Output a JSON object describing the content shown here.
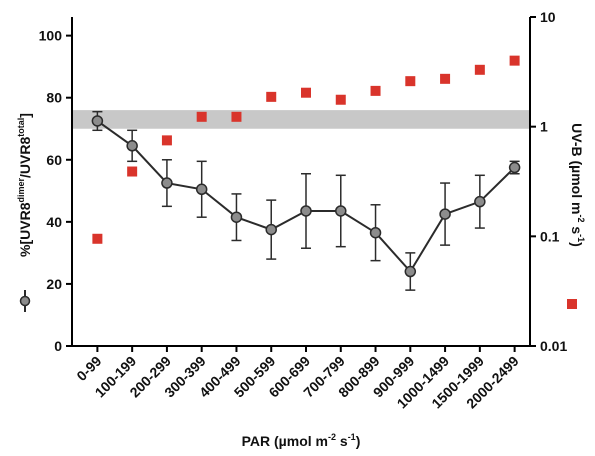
{
  "chart_data": {
    "type": "line",
    "categories": [
      "0-99",
      "100-199",
      "200-299",
      "300-399",
      "400-499",
      "500-599",
      "600-699",
      "700-799",
      "800-899",
      "900-999",
      "1000-1499",
      "1500-1999",
      "2000-2499"
    ],
    "series": [
      {
        "type": "line",
        "color": "#2b2b2b",
        "marker_color": "#8c8c8c",
        "values": [
          72.5,
          64.5,
          52.5,
          50.5,
          41.5,
          37.5,
          43.5,
          43.5,
          36.5,
          24,
          42.5,
          46.5,
          57.5
        ],
        "errors": [
          3,
          5,
          7.5,
          9,
          7.5,
          9.5,
          12,
          11.5,
          9,
          6,
          10,
          8.5,
          2
        ]
      },
      {
        "type": "scatter",
        "axis": "y2",
        "color": "#d9342b",
        "values": [
          0.095,
          0.39,
          0.75,
          1.23,
          1.23,
          1.87,
          2.04,
          1.76,
          2.12,
          2.6,
          2.73,
          3.3,
          4.0
        ]
      }
    ],
    "reference_band": [
      70,
      76
    ],
    "band_color": "#c8c8c8",
    "ylim": [
      0,
      106
    ],
    "yticks": [
      0,
      20,
      40,
      60,
      80,
      100
    ],
    "y2lim": [
      0.01,
      10
    ],
    "y2ticks": [
      0.01,
      0.1,
      1,
      10
    ],
    "y2scale": "log",
    "xlabel": {
      "text": "PAR (µmol m",
      "sup1": "-2",
      "mid": " s",
      "sup2": "-1",
      "end": ")"
    },
    "ylabel": {
      "text": "%[UVR8",
      "sup1": "dimer",
      "mid": "/UVR8",
      "sup2": "total",
      "end": "]"
    },
    "y2label": {
      "text": "UV-B (µmol m",
      "sup1": "-2",
      "mid": " s",
      "sup2": "-1",
      "end": ")"
    }
  }
}
